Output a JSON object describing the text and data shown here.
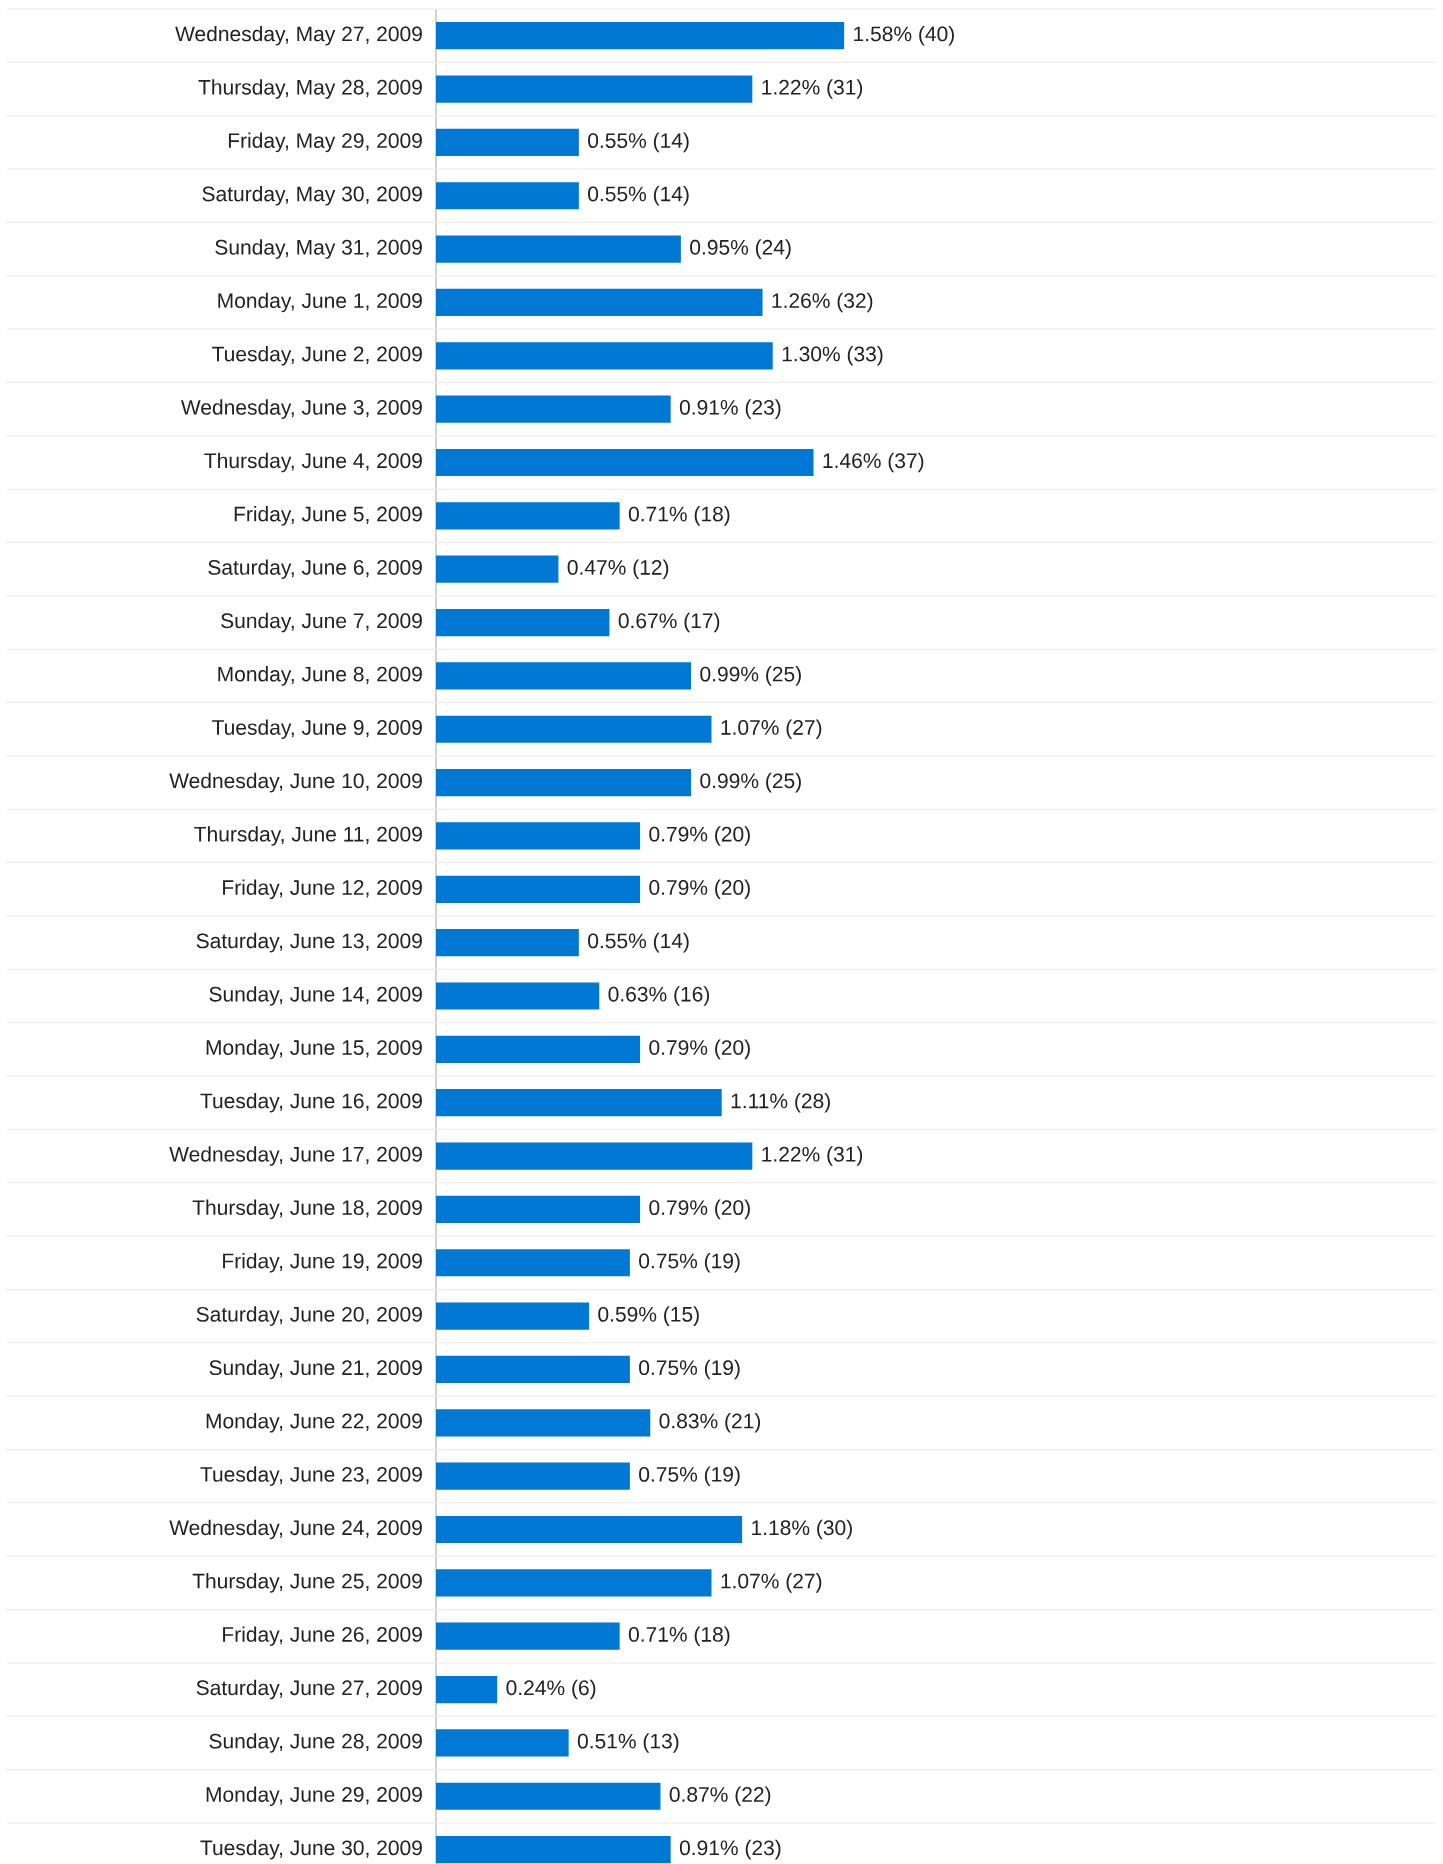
{
  "chart_data": {
    "type": "bar",
    "orientation": "horizontal",
    "color": "#0078d4",
    "grid": "y",
    "categories": [
      "Wednesday, May 27, 2009",
      "Thursday, May 28, 2009",
      "Friday, May 29, 2009",
      "Saturday, May 30, 2009",
      "Sunday, May 31, 2009",
      "Monday, June 1, 2009",
      "Tuesday, June 2, 2009",
      "Wednesday, June 3, 2009",
      "Thursday, June 4, 2009",
      "Friday, June 5, 2009",
      "Saturday, June 6, 2009",
      "Sunday, June 7, 2009",
      "Monday, June 8, 2009",
      "Tuesday, June 9, 2009",
      "Wednesday, June 10, 2009",
      "Thursday, June 11, 2009",
      "Friday, June 12, 2009",
      "Saturday, June 13, 2009",
      "Sunday, June 14, 2009",
      "Monday, June 15, 2009",
      "Tuesday, June 16, 2009",
      "Wednesday, June 17, 2009",
      "Thursday, June 18, 2009",
      "Friday, June 19, 2009",
      "Saturday, June 20, 2009",
      "Sunday, June 21, 2009",
      "Monday, June 22, 2009",
      "Tuesday, June 23, 2009",
      "Wednesday, June 24, 2009",
      "Thursday, June 25, 2009",
      "Friday, June 26, 2009",
      "Saturday, June 27, 2009",
      "Sunday, June 28, 2009",
      "Monday, June 29, 2009",
      "Tuesday, June 30, 2009"
    ],
    "values": [
      40,
      31,
      14,
      14,
      24,
      32,
      33,
      23,
      37,
      18,
      12,
      17,
      25,
      27,
      25,
      20,
      20,
      14,
      16,
      20,
      28,
      31,
      20,
      19,
      15,
      19,
      21,
      19,
      30,
      27,
      18,
      6,
      13,
      22,
      23
    ],
    "value_labels": [
      "1.58% (40)",
      "1.22% (31)",
      "0.55% (14)",
      "0.55% (14)",
      "0.95% (24)",
      "1.26% (32)",
      "1.30% (33)",
      "0.91% (23)",
      "1.46% (37)",
      "0.71% (18)",
      "0.47% (12)",
      "0.67% (17)",
      "0.99% (25)",
      "1.07% (27)",
      "0.99% (25)",
      "0.79% (20)",
      "0.79% (20)",
      "0.55% (14)",
      "0.63% (16)",
      "0.79% (20)",
      "1.11% (28)",
      "1.22% (31)",
      "0.79% (20)",
      "0.75% (19)",
      "0.59% (15)",
      "0.75% (19)",
      "0.83% (21)",
      "0.75% (19)",
      "1.18% (30)",
      "1.07% (27)",
      "0.71% (18)",
      "0.24% (6)",
      "0.51% (13)",
      "0.87% (22)",
      "0.91% (23)"
    ]
  }
}
